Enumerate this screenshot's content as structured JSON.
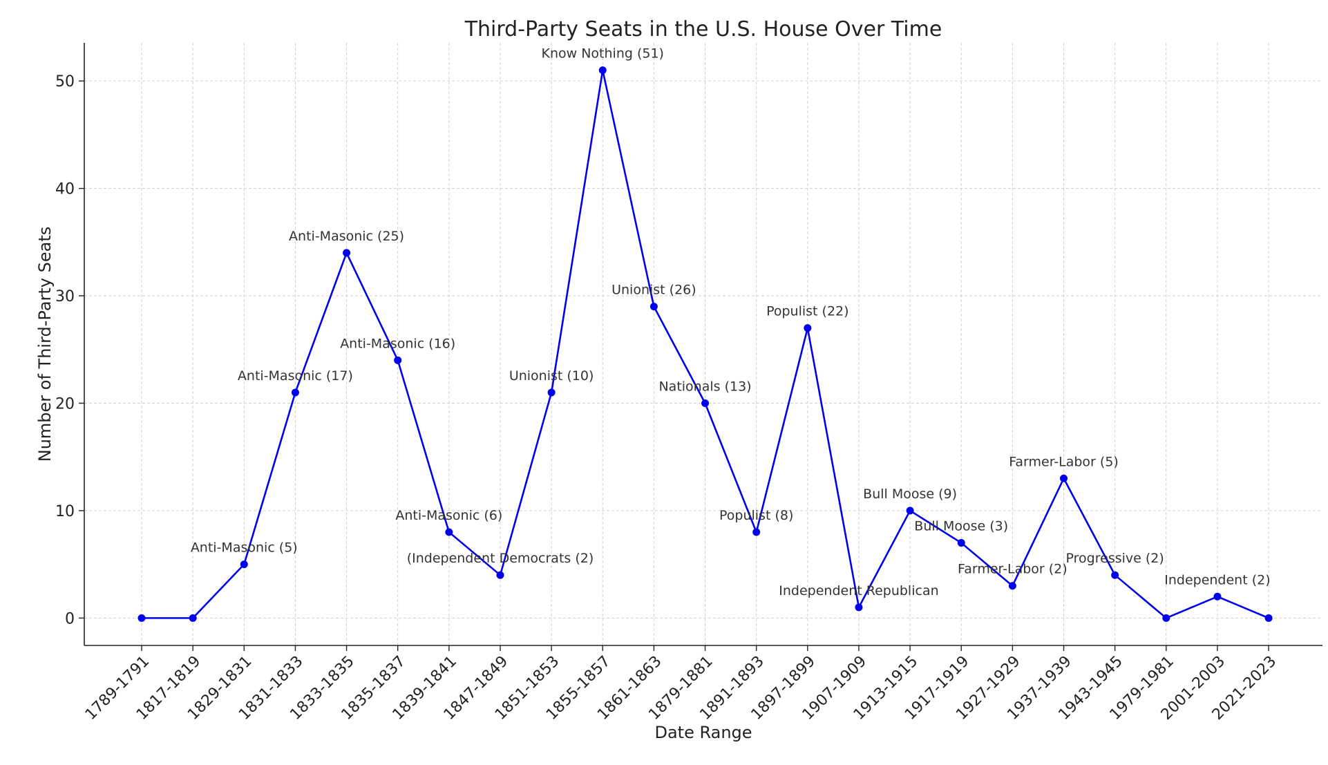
{
  "chart_data": {
    "type": "line",
    "title": "Third-Party Seats in the U.S. House Over Time",
    "xlabel": "Date Range",
    "ylabel": "Number of Third-Party Seats",
    "categories": [
      "1789-1791",
      "1817-1819",
      "1829-1831",
      "1831-1833",
      "1833-1835",
      "1835-1837",
      "1839-1841",
      "1847-1849",
      "1851-1853",
      "1855-1857",
      "1861-1863",
      "1879-1881",
      "1891-1893",
      "1897-1899",
      "1907-1909",
      "1913-1915",
      "1917-1919",
      "1927-1929",
      "1937-1939",
      "1943-1945",
      "1979-1981",
      "2001-2003",
      "2021-2023"
    ],
    "series": [
      {
        "values": [
          0,
          0,
          5,
          21,
          34,
          24,
          8,
          4,
          21,
          51,
          29,
          20,
          8,
          27,
          1,
          10,
          7,
          3,
          13,
          4,
          0,
          2,
          0
        ]
      }
    ],
    "annotations": [
      {
        "index": 2,
        "text": "Anti-Masonic (5)"
      },
      {
        "index": 3,
        "text": "Anti-Masonic (17)"
      },
      {
        "index": 4,
        "text": "Anti-Masonic (25)"
      },
      {
        "index": 5,
        "text": "Anti-Masonic (16)"
      },
      {
        "index": 6,
        "text": "Anti-Masonic (6)"
      },
      {
        "index": 7,
        "text": "(Independent Democrats (2)"
      },
      {
        "index": 8,
        "text": "Unionist (10)"
      },
      {
        "index": 9,
        "text": "Know Nothing (51)"
      },
      {
        "index": 10,
        "text": "Unionist (26)"
      },
      {
        "index": 11,
        "text": "Nationals (13)"
      },
      {
        "index": 12,
        "text": "Populist (8)"
      },
      {
        "index": 13,
        "text": "Populist (22)"
      },
      {
        "index": 14,
        "text": "Independent Republican"
      },
      {
        "index": 15,
        "text": "Bull Moose (9)"
      },
      {
        "index": 16,
        "text": "Bull Moose (3)"
      },
      {
        "index": 17,
        "text": "Farmer-Labor (2)"
      },
      {
        "index": 18,
        "text": "Farmer-Labor (5)"
      },
      {
        "index": 19,
        "text": "Progressive (2)"
      },
      {
        "index": 21,
        "text": "Independent (2)"
      }
    ],
    "ylim": [
      -2.55,
      53.55
    ],
    "yticks": [
      0,
      10,
      20,
      30,
      40,
      50
    ],
    "grid": true,
    "line_color": "#0000ee",
    "marker_color": "#0000ee"
  }
}
